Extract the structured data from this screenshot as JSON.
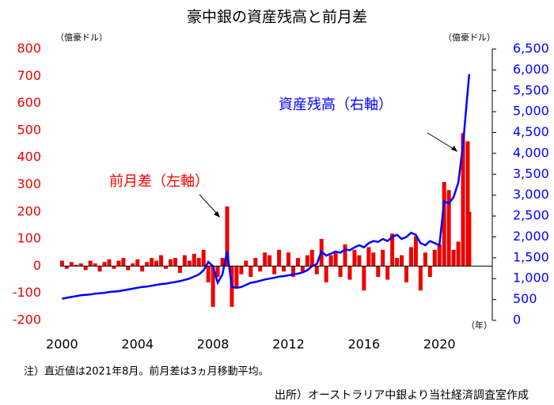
{
  "chart_data": {
    "type": "bar_line",
    "title": "豪中銀の資産残高と前月差",
    "y_unit_label": "（億豪ドル）",
    "y2_unit_label": "（億豪ドル）",
    "x_unit_label": "（年）",
    "note": "注）直近値は2021年8月。前月差は3ヵ月移動平均。",
    "source": "出所）オーストラリア中銀より当社経済調査室作成",
    "annotations": [
      {
        "text": "資産残高（右軸）",
        "color": "#0000ff"
      },
      {
        "text": "前月差（左軸）",
        "color": "#ff0000"
      }
    ],
    "x": [
      2000,
      2000.25,
      2000.5,
      2000.75,
      2001,
      2001.25,
      2001.5,
      2001.75,
      2002,
      2002.25,
      2002.5,
      2002.75,
      2003,
      2003.25,
      2003.5,
      2003.75,
      2004,
      2004.25,
      2004.5,
      2004.75,
      2005,
      2005.25,
      2005.5,
      2005.75,
      2006,
      2006.25,
      2006.5,
      2006.75,
      2007,
      2007.25,
      2007.5,
      2007.75,
      2008,
      2008.25,
      2008.5,
      2008.75,
      2009,
      2009.25,
      2009.5,
      2009.75,
      2010,
      2010.25,
      2010.5,
      2010.75,
      2011,
      2011.25,
      2011.5,
      2011.75,
      2012,
      2012.25,
      2012.5,
      2012.75,
      2013,
      2013.25,
      2013.5,
      2013.75,
      2014,
      2014.25,
      2014.5,
      2014.75,
      2015,
      2015.25,
      2015.5,
      2015.75,
      2016,
      2016.25,
      2016.5,
      2016.75,
      2017,
      2017.25,
      2017.5,
      2017.75,
      2018,
      2018.25,
      2018.5,
      2018.75,
      2019,
      2019.25,
      2019.5,
      2019.75,
      2020,
      2020.25,
      2020.5,
      2020.75,
      2021,
      2021.25,
      2021.5,
      2021.58
    ],
    "series": [
      {
        "name": "前月差",
        "type": "bar",
        "color": "#ee0000",
        "axis": "y",
        "values": [
          20,
          -10,
          15,
          5,
          10,
          -15,
          20,
          10,
          -20,
          15,
          25,
          -10,
          20,
          30,
          -15,
          10,
          25,
          -20,
          15,
          30,
          20,
          40,
          -10,
          25,
          30,
          -25,
          40,
          20,
          45,
          30,
          60,
          -60,
          -150,
          -40,
          30,
          220,
          -150,
          -80,
          -30,
          20,
          -40,
          30,
          -20,
          50,
          40,
          -30,
          60,
          -20,
          50,
          -40,
          30,
          -20,
          40,
          60,
          -30,
          100,
          -60,
          40,
          50,
          -40,
          80,
          -50,
          60,
          40,
          -90,
          70,
          50,
          -40,
          60,
          -50,
          120,
          30,
          40,
          -60,
          70,
          110,
          -90,
          50,
          -40,
          60,
          80,
          310,
          280,
          60,
          90,
          490,
          460,
          200
        ]
      },
      {
        "name": "資産残高",
        "type": "line",
        "color": "#0000ff",
        "axis": "y2",
        "values": [
          520,
          540,
          560,
          580,
          600,
          610,
          620,
          640,
          650,
          660,
          680,
          690,
          700,
          720,
          740,
          760,
          780,
          800,
          810,
          830,
          850,
          870,
          880,
          900,
          920,
          940,
          970,
          1000,
          1050,
          1100,
          1200,
          1400,
          1300,
          900,
          1100,
          1650,
          800,
          780,
          800,
          850,
          900,
          920,
          950,
          980,
          1000,
          1020,
          1050,
          1060,
          1080,
          1100,
          1120,
          1150,
          1200,
          1300,
          1350,
          1650,
          1550,
          1600,
          1650,
          1620,
          1700,
          1680,
          1750,
          1800,
          1750,
          1850,
          1900,
          1880,
          1950,
          1900,
          2000,
          2050,
          1950,
          2000,
          2100,
          2050,
          1850,
          1800,
          1900,
          1850,
          1800,
          2850,
          2800,
          2950,
          3300,
          4200,
          5500,
          5900
        ]
      }
    ],
    "xlim": [
      1999.9,
      2022.8
    ],
    "xticks": [
      2000,
      2004,
      2008,
      2012,
      2016,
      2020
    ],
    "ylim": [
      -200,
      800
    ],
    "yticks": [
      -200,
      -100,
      0,
      100,
      200,
      300,
      400,
      500,
      600,
      700,
      800
    ],
    "y2lim": [
      0,
      6500
    ],
    "y2ticks": [
      0,
      500,
      {
        "value": 1000,
        "label": "1,000"
      },
      {
        "value": 1500,
        "label": "1,500"
      },
      {
        "value": 2000,
        "label": "2,000"
      },
      {
        "value": 2500,
        "label": "2,500"
      },
      {
        "value": 3000,
        "label": "3,000"
      },
      {
        "value": 3500,
        "label": "3,500"
      },
      {
        "value": 4000,
        "label": "4,000"
      },
      {
        "value": 4500,
        "label": "4,500"
      },
      {
        "value": 5000,
        "label": "5,000"
      },
      {
        "value": 5500,
        "label": "5,500"
      },
      {
        "value": 6000,
        "label": "6,000"
      },
      {
        "value": 6500,
        "label": "6,500"
      }
    ]
  }
}
